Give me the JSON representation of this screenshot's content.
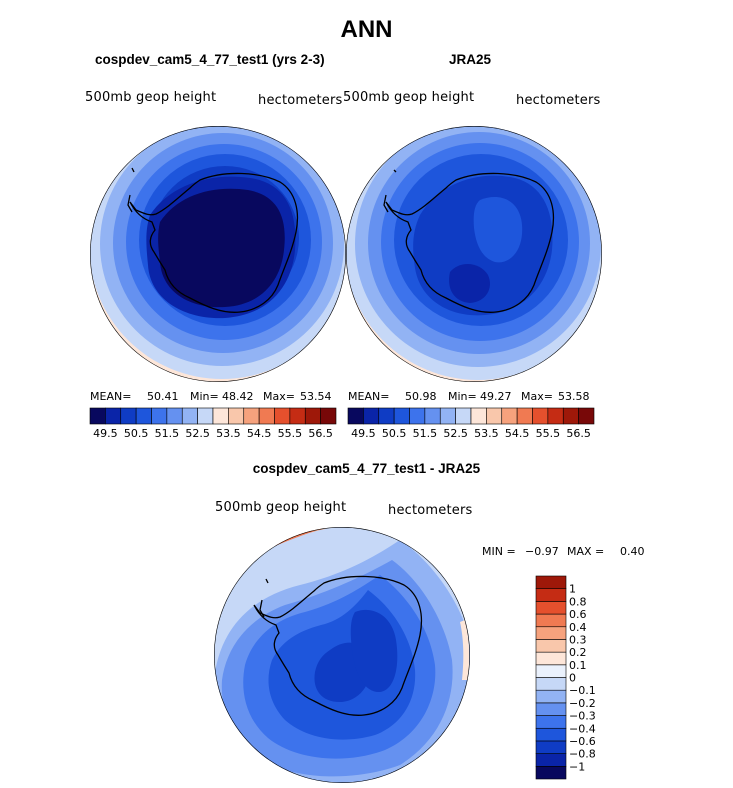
{
  "title": "ANN",
  "colors": {
    "abs_scale": [
      "#08085e",
      "#0a24a8",
      "#0f3cc4",
      "#1e56dc",
      "#3d73ec",
      "#6591f0",
      "#92b3f4",
      "#c6d8f7",
      "#fde6d9",
      "#f9c7ab",
      "#f6a27d",
      "#f07a52",
      "#e5502d",
      "#c52c14",
      "#9e1809",
      "#780808"
    ],
    "diff_scale": [
      "#08085e",
      "#0a24a8",
      "#0f3cc4",
      "#1e56dc",
      "#3d73ec",
      "#6591f0",
      "#92b3f4",
      "#c6d8f7",
      "#eaf1fc",
      "#fde6d9",
      "#f9c7ab",
      "#f6a27d",
      "#f07a52",
      "#e5502d",
      "#c52c14",
      "#9e1809"
    ]
  },
  "panel_left": {
    "name": "cospdev_cam5_4_77_test1 (yrs 2-3)",
    "variable": "500mb geop height",
    "units": "hectometers",
    "mean_label": "MEAN=",
    "mean": "50.41",
    "min_label": "Min=",
    "min": "48.42",
    "max_label": "Max=",
    "max": "53.54"
  },
  "panel_right": {
    "name": "JRA25",
    "variable": "500mb geop height",
    "units": "hectometers",
    "mean_label": "MEAN=",
    "mean": "50.98",
    "min_label": "Min=",
    "min": "49.27",
    "max_label": "Max=",
    "max": "53.58"
  },
  "panel_diff": {
    "name": "cospdev_cam5_4_77_test1 - JRA25",
    "variable": "500mb geop height",
    "units": "hectometers",
    "min_label": "MIN =",
    "min": "−0.97",
    "max_label": "MAX =",
    "max": "0.40"
  },
  "chart_data": [
    {
      "type": "heatmap",
      "title": "cospdev_cam5_4_77_test1 (yrs 2-3)",
      "subtitle": "500mb geop height (hectometers)",
      "projection": "south polar stereographic",
      "colorbar_ticks": [
        "49.5",
        "50.5",
        "51.5",
        "52.5",
        "53.5",
        "54.5",
        "55.5",
        "56.5"
      ],
      "stats": {
        "mean": 50.41,
        "min": 48.42,
        "max": 53.54
      }
    },
    {
      "type": "heatmap",
      "title": "JRA25",
      "subtitle": "500mb geop height (hectometers)",
      "projection": "south polar stereographic",
      "colorbar_ticks": [
        "49.5",
        "50.5",
        "51.5",
        "52.5",
        "53.5",
        "54.5",
        "55.5",
        "56.5"
      ],
      "stats": {
        "mean": 50.98,
        "min": 49.27,
        "max": 53.58
      }
    },
    {
      "type": "heatmap",
      "title": "cospdev_cam5_4_77_test1 - JRA25",
      "subtitle": "500mb geop height (hectometers)",
      "projection": "south polar stereographic",
      "colorbar_ticks": [
        "1",
        "0.8",
        "0.6",
        "0.4",
        "0.3",
        "0.2",
        "0.1",
        "0",
        "−0.1",
        "−0.2",
        "−0.3",
        "−0.4",
        "−0.6",
        "−0.8",
        "−1"
      ],
      "stats": {
        "min": -0.97,
        "max": 0.4
      }
    }
  ]
}
